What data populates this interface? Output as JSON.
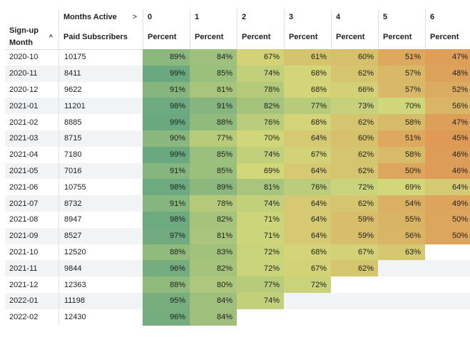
{
  "header": {
    "months_active_label": "Months Active",
    "months_active_arrow": ">",
    "signup_label_line1": "Sign-up",
    "signup_label_line2": "Month",
    "sort_glyph": "^",
    "paid_label": "Paid Subscribers",
    "percent_label": "Percent"
  },
  "chart_data": {
    "type": "table",
    "columns": [
      "0",
      "1",
      "2",
      "3",
      "4",
      "5",
      "6"
    ],
    "rows": [
      {
        "month": "2020-10",
        "subscribers": "10175",
        "values": [
          89,
          84,
          67,
          61,
          60,
          51,
          47
        ]
      },
      {
        "month": "2020-11",
        "subscribers": "8411",
        "values": [
          99,
          85,
          74,
          68,
          62,
          57,
          48
        ]
      },
      {
        "month": "2020-12",
        "subscribers": "9622",
        "values": [
          91,
          81,
          78,
          68,
          66,
          57,
          52
        ]
      },
      {
        "month": "2021-01",
        "subscribers": "11201",
        "values": [
          98,
          91,
          82,
          77,
          73,
          70,
          56
        ]
      },
      {
        "month": "2021-02",
        "subscribers": "8885",
        "values": [
          99,
          88,
          76,
          68,
          62,
          58,
          47
        ]
      },
      {
        "month": "2021-03",
        "subscribers": "8715",
        "values": [
          90,
          77,
          70,
          64,
          60,
          51,
          45
        ]
      },
      {
        "month": "2021-04",
        "subscribers": "7180",
        "values": [
          99,
          85,
          74,
          67,
          62,
          58,
          46
        ]
      },
      {
        "month": "2021-05",
        "subscribers": "7016",
        "values": [
          91,
          85,
          69,
          64,
          62,
          50,
          46
        ]
      },
      {
        "month": "2021-06",
        "subscribers": "10755",
        "values": [
          98,
          89,
          81,
          76,
          72,
          69,
          64
        ]
      },
      {
        "month": "2021-07",
        "subscribers": "8732",
        "values": [
          91,
          78,
          74,
          64,
          62,
          54,
          49
        ]
      },
      {
        "month": "2021-08",
        "subscribers": "8947",
        "values": [
          98,
          82,
          71,
          64,
          59,
          55,
          50
        ]
      },
      {
        "month": "2021-09",
        "subscribers": "8527",
        "values": [
          97,
          81,
          71,
          64,
          59,
          56,
          50
        ]
      },
      {
        "month": "2021-10",
        "subscribers": "12520",
        "values": [
          88,
          83,
          72,
          68,
          67,
          63
        ]
      },
      {
        "month": "2021-11",
        "subscribers": "9844",
        "values": [
          96,
          82,
          72,
          67,
          62
        ]
      },
      {
        "month": "2021-12",
        "subscribers": "12363",
        "values": [
          88,
          80,
          77,
          72
        ]
      },
      {
        "month": "2022-01",
        "subscribers": "11198",
        "values": [
          95,
          84,
          74
        ]
      },
      {
        "month": "2022-02",
        "subscribers": "12430",
        "values": [
          96,
          84
        ]
      }
    ],
    "value_suffix": "%",
    "color_scale": {
      "low": "#df9a56",
      "mid": "#d2d87a",
      "high": "#6aa87f",
      "min": 45,
      "max": 99
    }
  }
}
